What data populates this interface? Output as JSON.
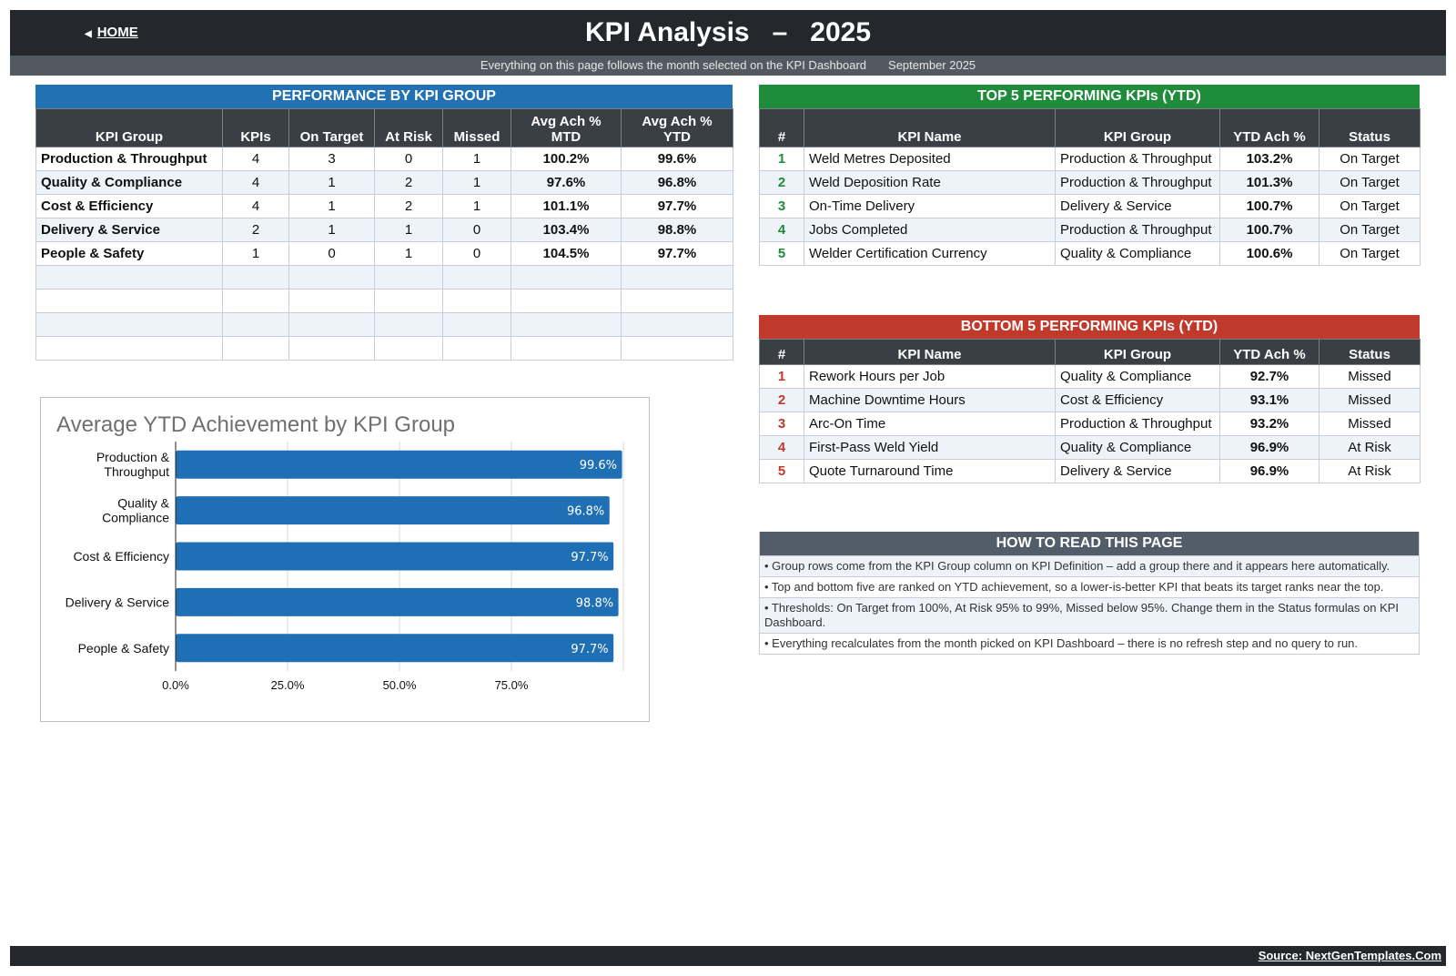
{
  "header": {
    "home_label": "HOME",
    "title": "KPI Analysis   –   2025",
    "subtitle": "Everything on this page follows the month selected on the KPI Dashboard",
    "month": "September 2025"
  },
  "group_table": {
    "title": "PERFORMANCE BY KPI GROUP",
    "columns": [
      "KPI Group",
      "KPIs",
      "On Target",
      "At Risk",
      "Missed",
      "Avg Ach % MTD",
      "Avg Ach % YTD"
    ],
    "col_lines": [
      [
        "KPI Group"
      ],
      [
        "KPIs"
      ],
      [
        "On Target"
      ],
      [
        "At Risk"
      ],
      [
        "Missed"
      ],
      [
        "Avg Ach %",
        "MTD"
      ],
      [
        "Avg Ach %",
        "YTD"
      ]
    ],
    "rows": [
      [
        "Production & Throughput",
        "4",
        "3",
        "0",
        "1",
        "100.2%",
        "99.6%"
      ],
      [
        "Quality & Compliance",
        "4",
        "1",
        "2",
        "1",
        "97.6%",
        "96.8%"
      ],
      [
        "Cost & Efficiency",
        "4",
        "1",
        "2",
        "1",
        "101.1%",
        "97.7%"
      ],
      [
        "Delivery & Service",
        "2",
        "1",
        "1",
        "0",
        "103.4%",
        "98.8%"
      ],
      [
        "People & Safety",
        "1",
        "0",
        "1",
        "0",
        "104.5%",
        "97.7%"
      ],
      [
        "",
        "",
        "",
        "",
        "",
        "",
        ""
      ],
      [
        "",
        "",
        "",
        "",
        "",
        "",
        ""
      ],
      [
        "",
        "",
        "",
        "",
        "",
        "",
        ""
      ],
      [
        "",
        "",
        "",
        "",
        "",
        "",
        ""
      ]
    ]
  },
  "top5": {
    "title": "TOP 5 PERFORMING KPIs  (YTD)",
    "columns": [
      "#",
      "KPI Name",
      "KPI Group",
      "YTD Ach %",
      "Status"
    ],
    "rows": [
      [
        "1",
        "Weld Metres Deposited",
        "Production & Throughput",
        "103.2%",
        "On Target"
      ],
      [
        "2",
        "Weld Deposition Rate",
        "Production & Throughput",
        "101.3%",
        "On Target"
      ],
      [
        "3",
        "On-Time Delivery",
        "Delivery & Service",
        "100.7%",
        "On Target"
      ],
      [
        "4",
        "Jobs Completed",
        "Production & Throughput",
        "100.7%",
        "On Target"
      ],
      [
        "5",
        "Welder Certification Currency",
        "Quality & Compliance",
        "100.6%",
        "On Target"
      ]
    ]
  },
  "bottom5": {
    "title": "BOTTOM 5 PERFORMING KPIs  (YTD)",
    "columns": [
      "#",
      "KPI Name",
      "KPI Group",
      "YTD Ach %",
      "Status"
    ],
    "rows": [
      [
        "1",
        "Rework Hours per Job",
        "Quality & Compliance",
        "92.7%",
        "Missed"
      ],
      [
        "2",
        "Machine Downtime Hours",
        "Cost & Efficiency",
        "93.1%",
        "Missed"
      ],
      [
        "3",
        "Arc-On Time",
        "Production & Throughput",
        "93.2%",
        "Missed"
      ],
      [
        "4",
        "First-Pass Weld Yield",
        "Quality & Compliance",
        "96.9%",
        "At Risk"
      ],
      [
        "5",
        "Quote Turnaround Time",
        "Delivery & Service",
        "96.9%",
        "At Risk"
      ]
    ]
  },
  "how_to_read": {
    "title": "HOW TO READ THIS PAGE",
    "items": [
      "•  Group rows come from the KPI Group column on KPI Definition – add a group there and it appears here automatically.",
      "•  Top and bottom five are ranked on YTD achievement, so a lower-is-better KPI that beats its target ranks near the top.",
      "•  Thresholds: On Target from 100%, At Risk 95% to 99%, Missed below 95%. Change them in the Status formulas on KPI Dashboard.",
      "•  Everything recalculates from the month picked on KPI Dashboard – there is no refresh step and no query to run."
    ]
  },
  "chart_data": {
    "type": "bar",
    "orientation": "horizontal",
    "title": "Average YTD Achievement by KPI Group",
    "categories": [
      [
        "Production &",
        "Throughput"
      ],
      [
        "Quality &",
        "Compliance"
      ],
      [
        "Cost & Efficiency"
      ],
      [
        "Delivery & Service"
      ],
      [
        "People & Safety"
      ]
    ],
    "values": [
      99.6,
      96.8,
      97.7,
      98.8,
      97.7
    ],
    "value_labels": [
      "99.6%",
      "96.8%",
      "97.7%",
      "98.8%",
      "97.7%"
    ],
    "xlim": [
      0,
      100
    ],
    "xticks": [
      0,
      25,
      50,
      75
    ],
    "xtick_labels": [
      "0.0%",
      "25.0%",
      "50.0%",
      "75.0%"
    ],
    "bar_color": "#1f6fb5",
    "grid": true
  },
  "footer": {
    "source": "Source: NextGenTemplates.Com"
  }
}
